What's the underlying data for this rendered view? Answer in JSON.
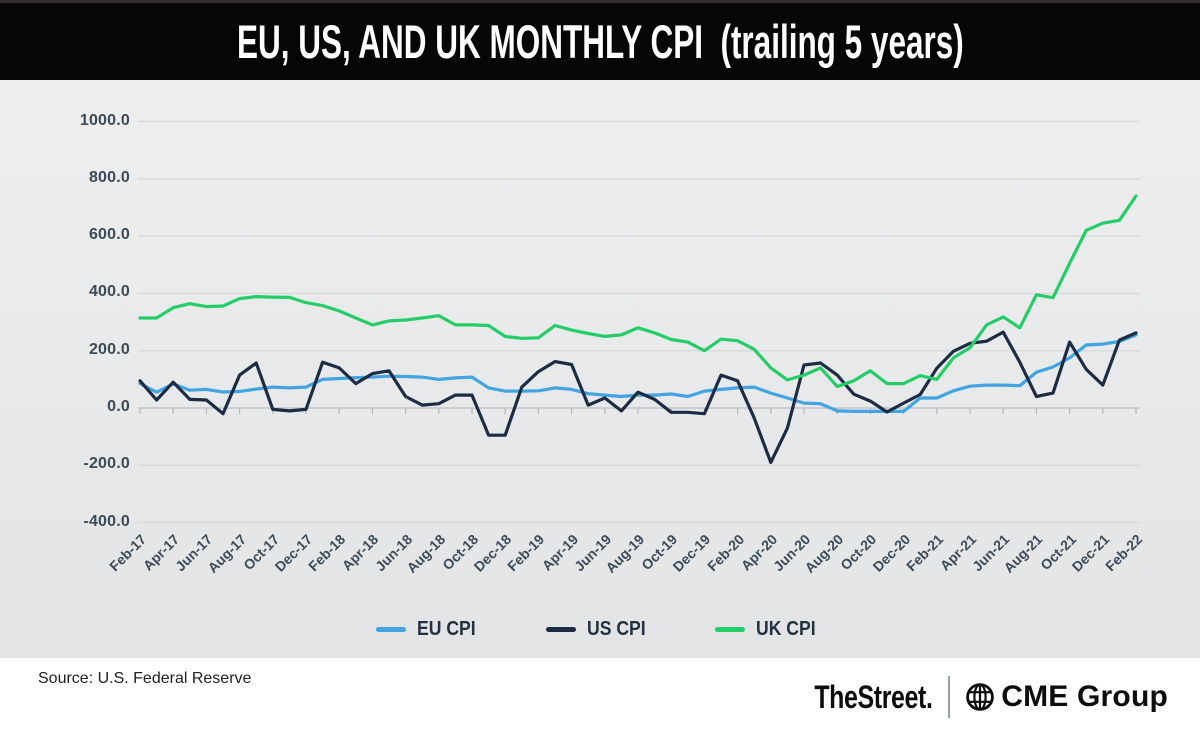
{
  "header": {
    "title": "EU, US, AND UK MONTHLY CPI  (trailing 5 years)"
  },
  "chart_data": {
    "type": "line",
    "title": "EU, US, AND UK MONTHLY CPI  (trailing 5 years)",
    "xlabel": "",
    "ylabel": "",
    "ylim": [
      -400,
      1000
    ],
    "grid": "horizontal",
    "legend_position": "bottom-center",
    "yticks": [
      1000,
      800,
      600,
      400,
      200,
      0,
      -200,
      -400
    ],
    "y_tick_labels": [
      "1000.0",
      "800.0",
      "600.0",
      "400.0",
      "200.0",
      "0.0",
      "-200.0",
      "-400.0"
    ],
    "x_tick_interval_months": 2,
    "x_tick_labels": [
      "Feb-17",
      "Apr-17",
      "Jun-17",
      "Aug-17",
      "Oct-17",
      "Dec-17",
      "Feb-18",
      "Apr-18",
      "Jun-18",
      "Aug-18",
      "Oct-18",
      "Dec-18",
      "Feb-19",
      "Apr-19",
      "Jun-19",
      "Aug-19",
      "Oct-19",
      "Dec-19",
      "Feb-20",
      "Apr-20",
      "Jun-20",
      "Aug-20",
      "Oct-20",
      "Dec-20",
      "Feb-21",
      "Apr-21",
      "Jun-21",
      "Aug-21",
      "Oct-21",
      "Dec-21",
      "Feb-22"
    ],
    "series": [
      {
        "name": "EU CPI",
        "color": "#42a4e0",
        "values": [
          85,
          55,
          84,
          62,
          65,
          56,
          58,
          66,
          73,
          70,
          73,
          100,
          103,
          106,
          108,
          111,
          110,
          108,
          100,
          105,
          108,
          70,
          59,
          59,
          60,
          70,
          65,
          50,
          45,
          40,
          45,
          45,
          49,
          40,
          59,
          65,
          70,
          73,
          52,
          35,
          17,
          15,
          -10,
          -12,
          -12,
          -12,
          -12,
          35,
          35,
          60,
          76,
          80,
          80,
          78,
          125,
          143,
          175,
          220,
          223,
          232,
          255
        ]
      },
      {
        "name": "US CPI",
        "color": "#1d2c42",
        "values": [
          95,
          28,
          90,
          30,
          28,
          -20,
          115,
          157,
          -5,
          -10,
          -5,
          160,
          140,
          85,
          120,
          130,
          40,
          10,
          15,
          45,
          45,
          -95,
          -95,
          73,
          127,
          162,
          152,
          10,
          35,
          -10,
          55,
          30,
          -15,
          -15,
          -20,
          115,
          95,
          -35,
          -190,
          -70,
          150,
          157,
          115,
          48,
          24,
          -14,
          17,
          47,
          139,
          198,
          226,
          233,
          265,
          160,
          40,
          52,
          230,
          135,
          80,
          237,
          262
        ]
      },
      {
        "name": "UK CPI",
        "color": "#25cd68",
        "values": [
          314,
          314,
          350,
          364,
          354,
          356,
          382,
          389,
          387,
          386,
          368,
          357,
          339,
          314,
          290,
          304,
          307,
          314,
          322,
          290,
          290,
          288,
          250,
          243,
          245,
          288,
          272,
          260,
          250,
          255,
          280,
          262,
          239,
          230,
          200,
          240,
          235,
          205,
          140,
          98,
          115,
          140,
          75,
          95,
          130,
          85,
          85,
          113,
          100,
          175,
          210,
          290,
          318,
          280,
          395,
          385,
          505,
          620,
          645,
          655,
          740
        ]
      }
    ]
  },
  "footer": {
    "source": "Source: U.S. Federal Reserve",
    "brand_primary": "TheStreet.",
    "brand_secondary": "CME Group"
  },
  "colors": {
    "header_bg": "#060606",
    "chart_bg": "#e8e9ea",
    "gridline": "#d7d9da",
    "zero_line": "#c2c5c7",
    "axis_text": "#3d4a57"
  }
}
